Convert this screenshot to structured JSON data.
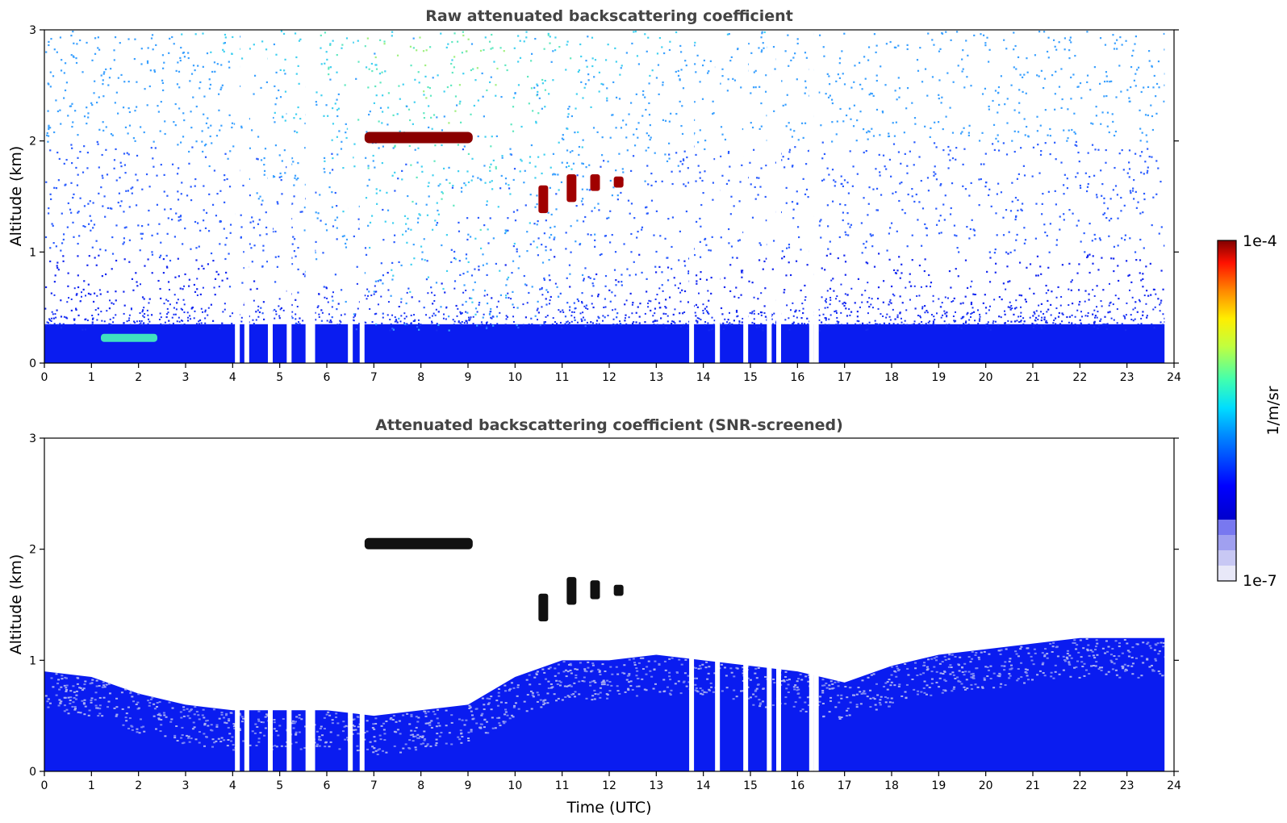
{
  "chart_data": [
    {
      "type": "heatmap",
      "title": "Raw attenuated backscattering coefficient",
      "xlabel": "",
      "ylabel": "Altitude (km)",
      "xlim": [
        0,
        24
      ],
      "ylim": [
        0,
        3
      ],
      "xticks": [
        "0",
        "1",
        "2",
        "3",
        "4",
        "5",
        "6",
        "7",
        "8",
        "9",
        "10",
        "11",
        "12",
        "13",
        "14",
        "15",
        "16",
        "17",
        "18",
        "19",
        "20",
        "21",
        "22",
        "23",
        "24"
      ],
      "yticks": [
        "0",
        "1",
        "2",
        "3"
      ],
      "features": {
        "noise_background": "scattered speckle increasing with altitude, denser between 4 and 13 UTC",
        "boundary_layer_top_km": 0.35,
        "dense_layer": {
          "x_start": 6.8,
          "x_end": 9.1,
          "y_center_km": 2.03,
          "level": "1e-4"
        },
        "cloud_patches": [
          {
            "x": 10.6,
            "y_bottom_km": 1.35,
            "y_top_km": 1.6
          },
          {
            "x": 11.2,
            "y_bottom_km": 1.45,
            "y_top_km": 1.7
          },
          {
            "x": 11.7,
            "y_bottom_km": 1.55,
            "y_top_km": 1.7
          },
          {
            "x": 12.2,
            "y_bottom_km": 1.58,
            "y_top_km": 1.68
          }
        ],
        "aerosol_feature": {
          "x_start": 1.2,
          "x_end": 2.4,
          "y_km": 0.22
        },
        "data_gaps_utc": [
          4.1,
          4.3,
          4.8,
          5.2,
          5.6,
          5.7,
          6.5,
          6.75,
          13.75,
          14.3,
          14.9,
          15.4,
          15.6,
          16.3,
          16.4
        ]
      }
    },
    {
      "type": "heatmap",
      "title": "Attenuated backscattering coefficient (SNR-screened)",
      "xlabel": "Time (UTC)",
      "ylabel": "Altitude (km)",
      "xlim": [
        0,
        24
      ],
      "ylim": [
        0,
        3
      ],
      "xticks": [
        "0",
        "1",
        "2",
        "3",
        "4",
        "5",
        "6",
        "7",
        "8",
        "9",
        "10",
        "11",
        "12",
        "13",
        "14",
        "15",
        "16",
        "17",
        "18",
        "19",
        "20",
        "21",
        "22",
        "23",
        "24"
      ],
      "yticks": [
        "0",
        "1",
        "2",
        "3"
      ],
      "features": {
        "boundary_layer_top_km": [
          {
            "x": 0,
            "y": 0.9
          },
          {
            "x": 1,
            "y": 0.85
          },
          {
            "x": 2,
            "y": 0.7
          },
          {
            "x": 3,
            "y": 0.6
          },
          {
            "x": 4,
            "y": 0.55
          },
          {
            "x": 5,
            "y": 0.55
          },
          {
            "x": 6,
            "y": 0.55
          },
          {
            "x": 7,
            "y": 0.5
          },
          {
            "x": 8,
            "y": 0.55
          },
          {
            "x": 9,
            "y": 0.6
          },
          {
            "x": 10,
            "y": 0.85
          },
          {
            "x": 11,
            "y": 1.0
          },
          {
            "x": 12,
            "y": 1.0
          },
          {
            "x": 13,
            "y": 1.05
          },
          {
            "x": 14,
            "y": 1.0
          },
          {
            "x": 15,
            "y": 0.95
          },
          {
            "x": 16,
            "y": 0.9
          },
          {
            "x": 17,
            "y": 0.8
          },
          {
            "x": 18,
            "y": 0.95
          },
          {
            "x": 19,
            "y": 1.05
          },
          {
            "x": 20,
            "y": 1.1
          },
          {
            "x": 21,
            "y": 1.15
          },
          {
            "x": 22,
            "y": 1.2
          },
          {
            "x": 23,
            "y": 1.2
          },
          {
            "x": 23.8,
            "y": 1.2
          }
        ],
        "dense_layer": {
          "x_start": 6.8,
          "x_end": 9.1,
          "y_center_km": 2.05,
          "screened": true
        },
        "cloud_patches": [
          {
            "x": 10.6,
            "y_bottom_km": 1.35,
            "y_top_km": 1.6
          },
          {
            "x": 11.2,
            "y_bottom_km": 1.5,
            "y_top_km": 1.75
          },
          {
            "x": 11.7,
            "y_bottom_km": 1.55,
            "y_top_km": 1.72
          },
          {
            "x": 12.2,
            "y_bottom_km": 1.58,
            "y_top_km": 1.68
          }
        ]
      }
    }
  ],
  "colorbar": {
    "label": "1/m/sr",
    "max_label": "1e-4",
    "min_label": "1e-7",
    "colormap": "jet",
    "low_colors": [
      "#e8e8f8",
      "#c8c8f4",
      "#a0a0f0",
      "#7878f0"
    ]
  }
}
